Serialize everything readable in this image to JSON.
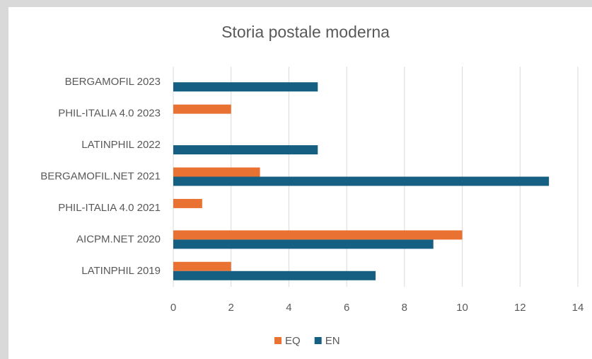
{
  "chart_data": {
    "type": "bar",
    "orientation": "horizontal",
    "title": "Storia postale moderna",
    "categories": [
      "BERGAMOFIL 2023",
      "PHIL-ITALIA 4.0 2023",
      "LATINPHIL 2022",
      "BERGAMOFIL.NET 2021",
      "PHIL-ITALIA 4.0 2021",
      "AICPM.NET 2020",
      "LATINPHIL 2019"
    ],
    "series": [
      {
        "name": "EQ",
        "color": "#e97132",
        "values": [
          null,
          2,
          null,
          3,
          1,
          10,
          2
        ]
      },
      {
        "name": "EN",
        "color": "#156082",
        "values": [
          5,
          null,
          5,
          13,
          null,
          9,
          7
        ]
      }
    ],
    "xlim": [
      0,
      14
    ],
    "xticks": [
      0,
      2,
      4,
      6,
      8,
      10,
      12,
      14
    ],
    "grid": true,
    "legend": "bottom"
  }
}
